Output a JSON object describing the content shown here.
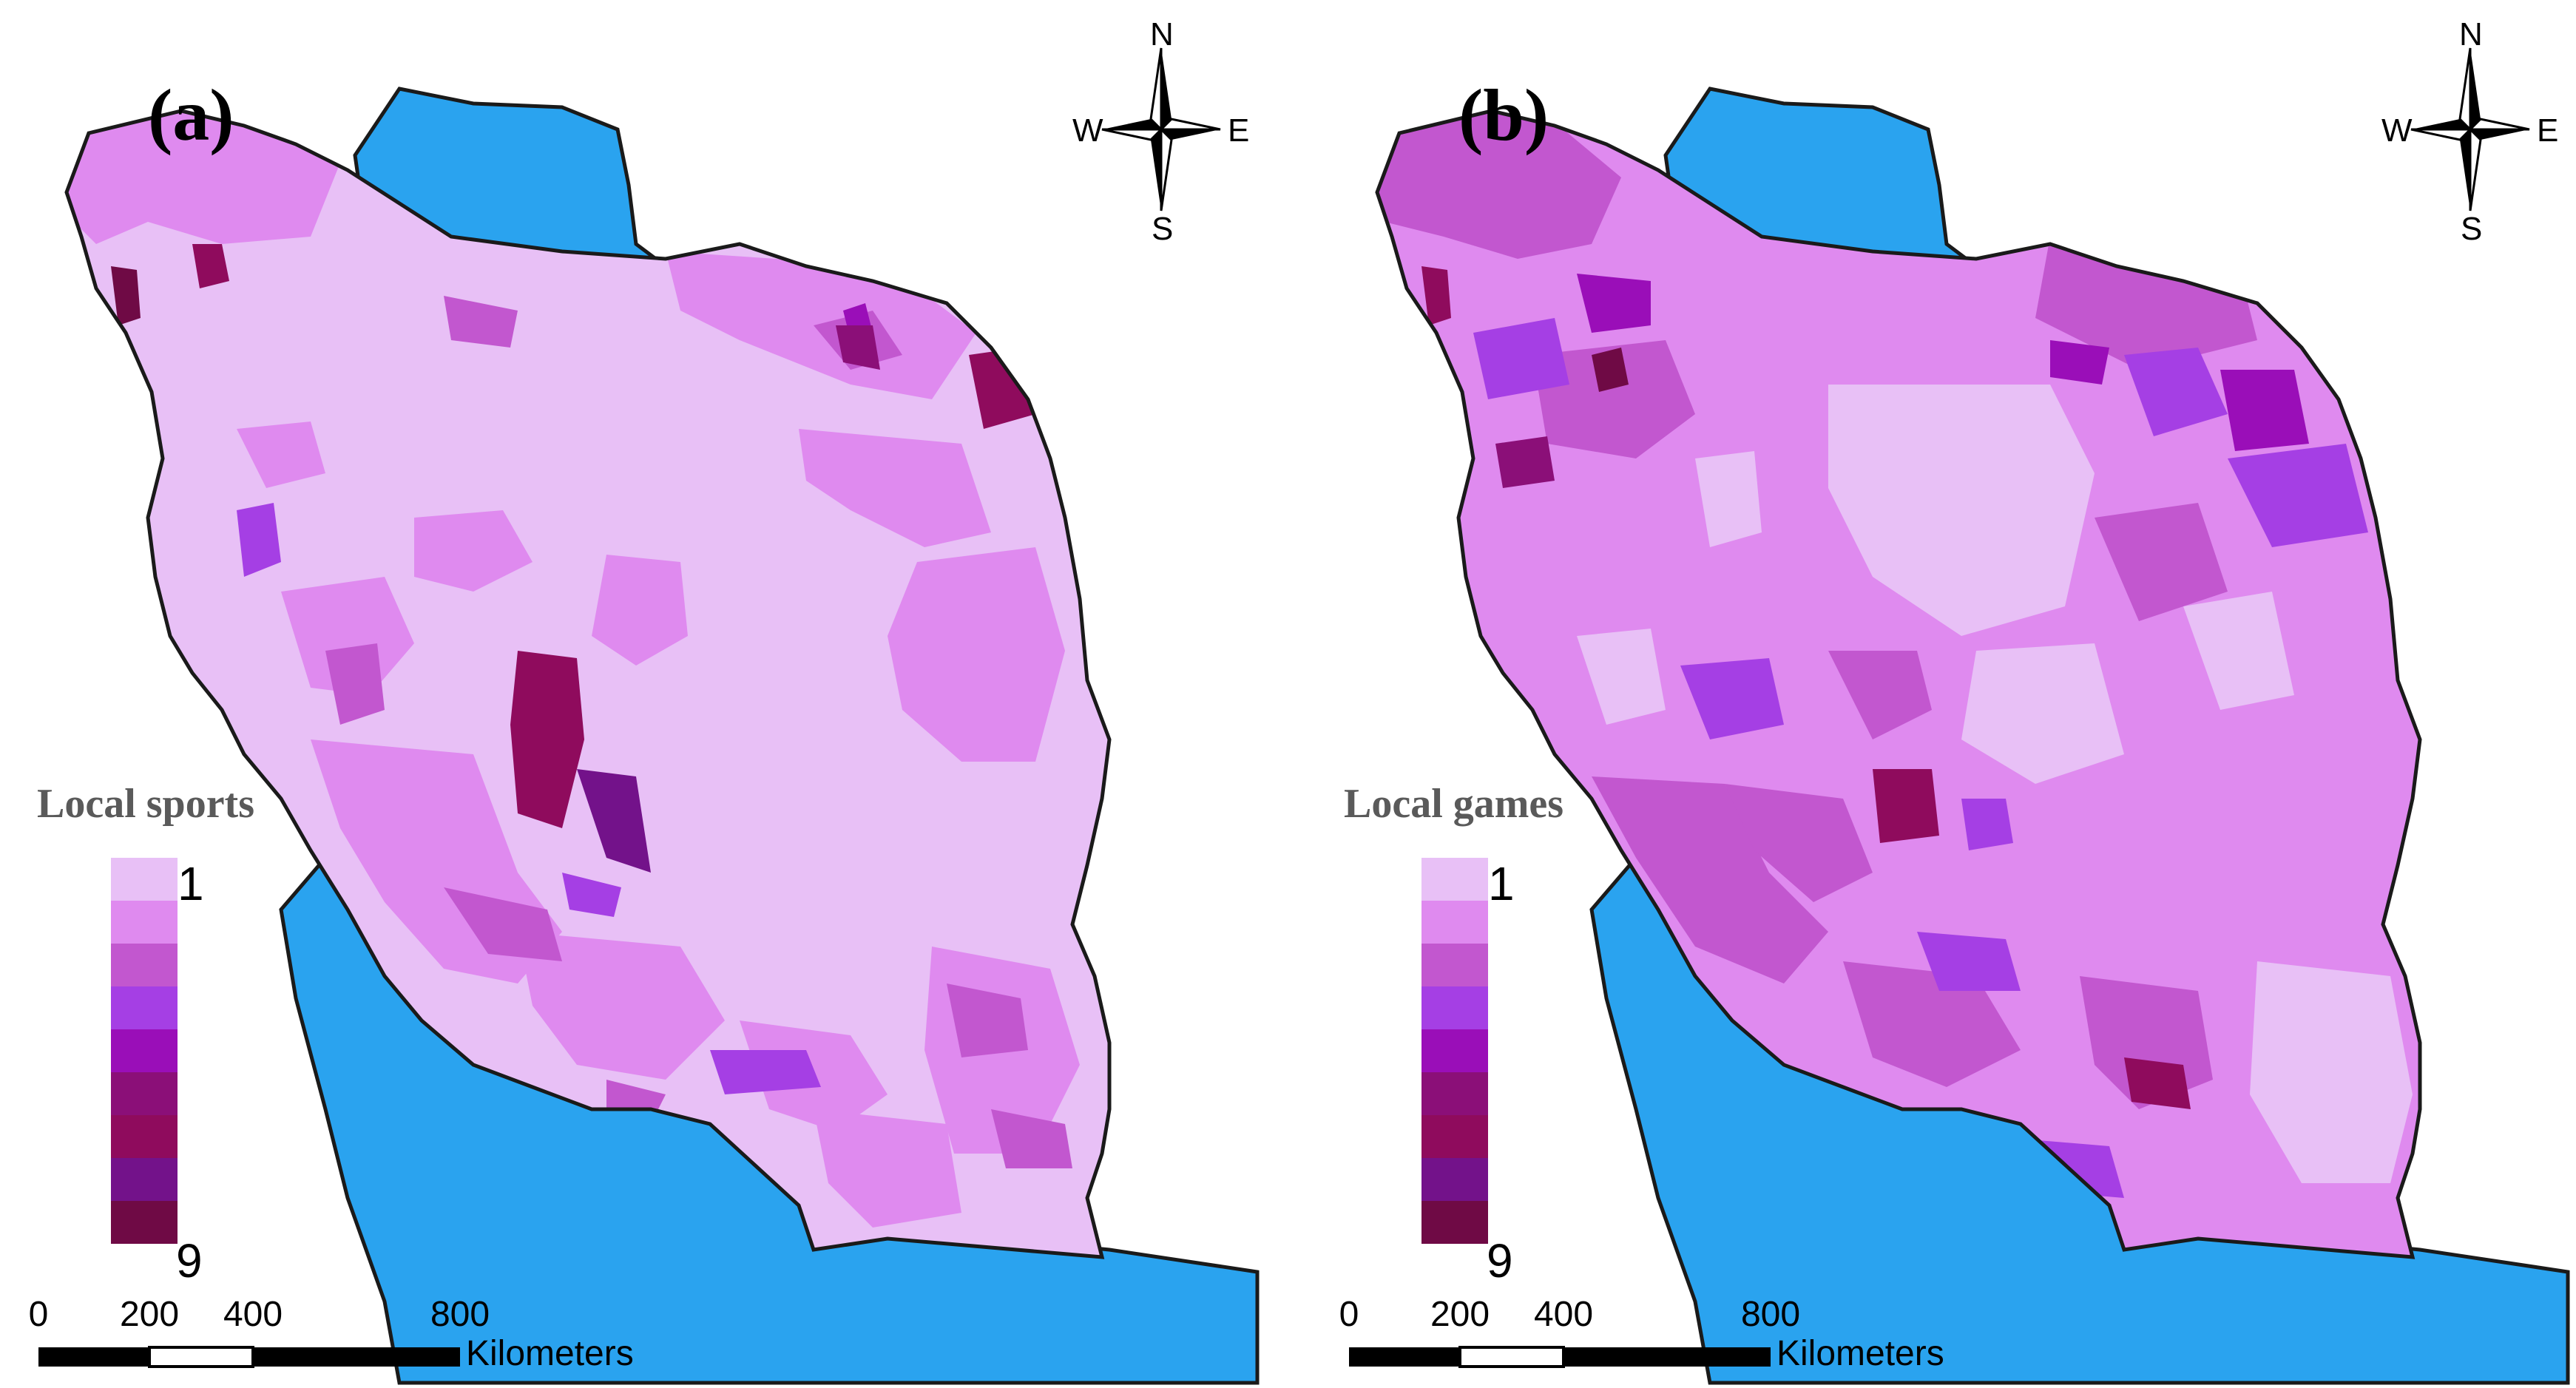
{
  "colors": {
    "sea": "#2aa3ef",
    "outline": "#1a1a1a",
    "classes": [
      "#e8c0f6",
      "#df8aef",
      "#c257cf",
      "#a53fe4",
      "#9a0eb8",
      "#8b0f78",
      "#8f0b5d",
      "#73128a",
      "#6f0a45"
    ]
  },
  "legend_scale": {
    "min": 1,
    "max": 9,
    "classes": 9
  },
  "compass": {
    "north": "N",
    "south": "S",
    "east": "E",
    "west": "W",
    "icon": "north-arrow-compass-icon"
  },
  "scale_bar": {
    "ticks": [
      "0",
      "200",
      "400",
      "800"
    ],
    "unit": "Kilometers"
  },
  "panels": [
    {
      "id": "a",
      "label": "(a)",
      "legend_title": "Local sports",
      "legend_min": "1",
      "legend_max": "9",
      "class_coverage": {
        "1": "dominant",
        "2": "common",
        "3": "scattered",
        "4": "rare",
        "5": "rare",
        "6": "rare",
        "7": "rare",
        "8": "rare",
        "9": "rare"
      }
    },
    {
      "id": "b",
      "label": "(b)",
      "legend_title": "Local games",
      "legend_min": "1",
      "legend_max": "9",
      "class_coverage": {
        "1": "large areas",
        "2": "dominant",
        "3": "common",
        "4": "common",
        "5": "scattered",
        "6": "rare",
        "7": "rare",
        "8": "rare",
        "9": "rare"
      }
    }
  ]
}
